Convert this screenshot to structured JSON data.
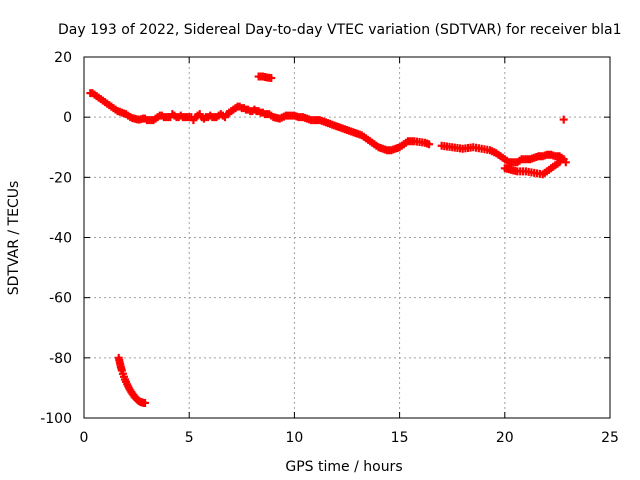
{
  "chart_data": {
    "type": "scatter",
    "title": "Day 193 of 2022, Sidereal Day-to-day VTEC variation (SDTVAR) for receiver bla1",
    "xlabel": "GPS time / hours",
    "ylabel": "SDTVAR / TECUs",
    "xlim": [
      0,
      25
    ],
    "ylim": [
      -100,
      20
    ],
    "xticks": [
      0,
      5,
      10,
      15,
      20,
      25
    ],
    "yticks": [
      -100,
      -80,
      -60,
      -40,
      -20,
      0,
      20
    ],
    "grid": true,
    "marker": "plus",
    "color": "#ff0000",
    "series": [
      {
        "name": "main-track",
        "x": [
          0.3,
          0.4,
          0.5,
          0.6,
          0.7,
          0.8,
          0.9,
          1.0,
          1.1,
          1.2,
          1.3,
          1.4,
          1.5,
          1.6,
          1.7,
          1.8,
          1.9,
          2.0,
          2.1,
          2.2,
          2.3,
          2.4,
          2.5,
          2.6,
          2.7,
          2.8,
          2.9,
          3.0,
          3.1,
          3.2,
          3.3,
          3.4,
          3.5,
          3.6,
          3.7,
          3.8,
          3.9,
          4.0,
          4.1,
          4.2,
          4.3,
          4.4,
          4.5,
          4.6,
          4.7,
          4.8,
          4.9,
          5.0,
          5.1,
          5.2,
          5.3,
          5.4,
          5.5,
          5.6,
          5.7,
          5.8,
          5.9,
          6.0,
          6.1,
          6.2,
          6.3,
          6.4,
          6.5,
          6.6,
          6.7,
          6.8,
          6.9,
          7.0,
          7.1,
          7.2,
          7.3,
          7.4,
          7.5,
          7.6,
          7.7,
          7.8,
          7.9,
          8.0,
          8.1,
          8.2,
          8.3,
          8.4,
          8.5,
          8.6,
          8.7,
          8.8,
          8.9,
          9.0,
          9.3,
          9.6,
          9.8,
          10.0,
          10.2,
          10.4,
          10.6,
          10.8,
          11.0,
          11.2,
          11.4,
          11.6,
          11.8,
          12.0,
          12.2,
          12.4,
          12.6,
          12.8,
          13.0,
          13.2,
          13.4,
          13.6,
          13.8,
          14.0,
          14.2,
          14.4,
          14.6,
          14.8,
          15.0,
          15.2,
          15.4
        ],
        "y": [
          8,
          8,
          7.5,
          7,
          6.5,
          6,
          5.5,
          5,
          4.5,
          4,
          3.5,
          3,
          2.5,
          2,
          1.8,
          1.5,
          1.2,
          1,
          0.5,
          0,
          -0.3,
          -0.5,
          -0.7,
          -0.8,
          -0.7,
          -0.5,
          -0.5,
          -1,
          -1,
          -1,
          -1,
          -0.5,
          0,
          0.5,
          0.5,
          0,
          0,
          0,
          0,
          1,
          0.5,
          0,
          0,
          0.5,
          0,
          0,
          0,
          0,
          0,
          -1,
          0,
          0.5,
          1,
          0,
          -0.5,
          0,
          0,
          0.5,
          0,
          0,
          0,
          0.5,
          1,
          0.5,
          0,
          1,
          1.5,
          2,
          2.5,
          3,
          3.5,
          3.5,
          3,
          3,
          2.5,
          2.5,
          2,
          2,
          2.5,
          2,
          2,
          1.5,
          1.5,
          1,
          1,
          1,
          0.5,
          0,
          -0.5,
          0.5,
          0.5,
          0.5,
          0,
          0,
          -0.5,
          -1,
          -1,
          -1,
          -1.5,
          -2,
          -2.5,
          -3,
          -3.5,
          -4,
          -4.5,
          -5,
          -5.5,
          -6,
          -7,
          -8,
          -9,
          -10,
          -10.5,
          -11,
          -11,
          -10.5,
          -10,
          -9,
          -8
        ]
      },
      {
        "name": "late-track",
        "x": [
          15.5,
          15.7,
          16.2,
          16.4,
          17.0,
          17.5,
          18.0,
          18.5,
          18.9,
          19.3,
          19.6,
          19.8,
          20.0,
          20.2,
          20.4,
          20.6,
          20.8,
          21.0,
          21.2,
          21.4,
          21.6,
          21.8,
          22.0,
          22.2,
          22.4,
          22.6,
          22.8,
          22.9,
          20.0,
          20.3,
          20.6,
          21.0,
          21.4,
          21.8,
          22.2,
          22.6
        ],
        "y": [
          -8,
          -8,
          -8.5,
          -9,
          -9.5,
          -10,
          -10.5,
          -10,
          -10.5,
          -11,
          -12,
          -13,
          -14,
          -15,
          -15,
          -15,
          -14,
          -14,
          -14,
          -13.5,
          -13,
          -13,
          -12.5,
          -12.5,
          -13,
          -13,
          -14,
          -15,
          -17,
          -17.5,
          -18,
          -18,
          -18.5,
          -19,
          -17,
          -15
        ]
      },
      {
        "name": "high-arc",
        "x": [
          8.3,
          8.5,
          8.7,
          8.9
        ],
        "y": [
          13.5,
          13.5,
          13.2,
          13
        ]
      },
      {
        "name": "isolated-point",
        "x": [
          22.8
        ],
        "y": [
          -0.8
        ]
      },
      {
        "name": "low-arc",
        "x": [
          1.65,
          1.7,
          1.75,
          1.8,
          1.85,
          1.9,
          1.95,
          2.0,
          2.05,
          2.1,
          2.15,
          2.2,
          2.25,
          2.3,
          2.35,
          2.4,
          2.45,
          2.5,
          2.55,
          2.6,
          2.65,
          2.7,
          2.75,
          2.8,
          2.85,
          2.9
        ],
        "y": [
          -80,
          -81.5,
          -83,
          -84.2,
          -85.3,
          -86.3,
          -87.2,
          -88,
          -88.8,
          -89.5,
          -90.2,
          -90.8,
          -91.4,
          -91.9,
          -92.4,
          -92.9,
          -93.3,
          -93.7,
          -94,
          -94.3,
          -94.5,
          -94.7,
          -94.8,
          -94.9,
          -95,
          -95
        ]
      }
    ]
  }
}
